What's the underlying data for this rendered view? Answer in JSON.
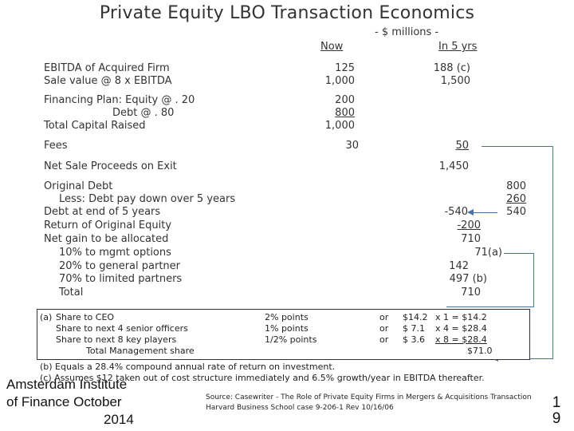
{
  "title": "Private Equity LBO Transaction Economics",
  "units_label": "- $ millions -",
  "col_now": "Now",
  "col_5yrs": "In 5 yrs",
  "rows": {
    "ebitda_label": "EBITDA of Acquired Firm",
    "ebitda_now": "125",
    "ebitda_5": "188 (c)",
    "sale_label": "Sale value @ 8 x EBITDA",
    "sale_now": "1,000",
    "sale_5": "1,500",
    "fin_label": "Financing Plan: Equity @ . 20",
    "equity_now": "200",
    "debt_label": "Debt @ . 80",
    "debt_now": "800",
    "total_cap_label": "Total Capital Raised",
    "total_cap_now": "1,000",
    "fees_label": "Fees",
    "fees_now": "30",
    "fees_5": "50",
    "net_sale_label": "Net Sale Proceeds on Exit",
    "net_sale_5": "1,450",
    "orig_debt_label": "Original Debt",
    "orig_debt_val": "800",
    "less_label": "Less: Debt pay down over 5 years",
    "less_val": "260",
    "debt_end_label": "Debt at end of 5 years",
    "debt_end_val": "540",
    "debt_end_neg": "-540",
    "return_eq_label": "Return of Original Equity",
    "return_eq_val": "-200",
    "net_gain_label": "Net gain to be allocated",
    "net_gain_val": "710",
    "mgmt_label": "10% to mgmt options",
    "mgmt_val": "71(a)",
    "gp_label": "20% to general partner",
    "gp_val": "142",
    "lp_label": "70% to limited partners",
    "lp_val": "497 (b)",
    "total_label": "Total",
    "total_val": "710"
  },
  "note_a": {
    "marker": "(a)",
    "lines": [
      "Share to CEO",
      "Share to next 4 senior officers",
      "Share to next 8 key players",
      "Total Management share"
    ],
    "points": [
      "2% points",
      "1% points",
      "1/2% points"
    ],
    "or": [
      "or",
      "or",
      "or"
    ],
    "dollars": [
      "$14.2",
      "$ 7.1",
      "$ 3.6"
    ],
    "calc": [
      "x 1 = $14.2",
      "x 4 = $28.4",
      "x 8 = $28.4"
    ],
    "total": "$71.0"
  },
  "note_b": "(b) Equals a 28.4% compound annual rate of return on investment.",
  "note_c": "(c) Assumes $12 taken out of cost structure immediately and 6.5% growth/year in EBITDA thereafter.",
  "footer": {
    "org_line1": "Amsterdam Institute",
    "org_line2": "of Finance October",
    "org_line3": "2014",
    "source_line1": "Source: Casewriter - The Role of Private Equity Firms in Mergers & Acquisitions Transaction",
    "source_line2": "Harvard Business School case 9-206-1 Rev 10/16/06",
    "page_num_1": "1",
    "page_num_2": "9"
  }
}
